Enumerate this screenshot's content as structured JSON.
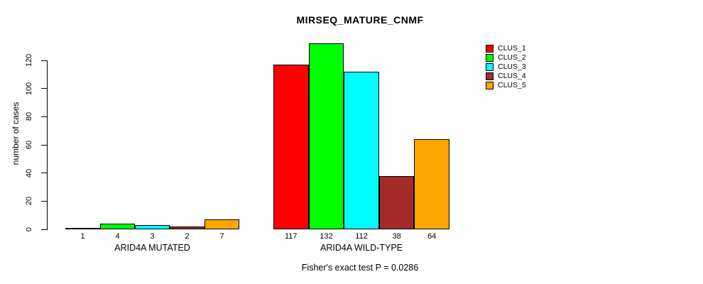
{
  "chart_data": {
    "type": "bar",
    "title": "MIRSEQ_MATURE_CNMF",
    "ylabel": "number of cases",
    "ylim": [
      0,
      120
    ],
    "yticks": [
      0,
      20,
      40,
      60,
      80,
      100,
      120
    ],
    "grid": false,
    "legend_position": "top-right",
    "legend": [
      "CLUS_1",
      "CLUS_2",
      "CLUS_3",
      "CLUS_4",
      "CLUS_5"
    ],
    "series_colors": [
      "#ff0000",
      "#00ff00",
      "#00ffff",
      "#a52a2a",
      "#ffa500"
    ],
    "groups": [
      {
        "label": "ARID4A MUTATED",
        "values": [
          1,
          4,
          3,
          2,
          7
        ]
      },
      {
        "label": "ARID4A WILD-TYPE",
        "values": [
          117,
          132,
          112,
          38,
          64
        ]
      }
    ],
    "footnote": "Fisher's exact test P = 0.0286"
  }
}
